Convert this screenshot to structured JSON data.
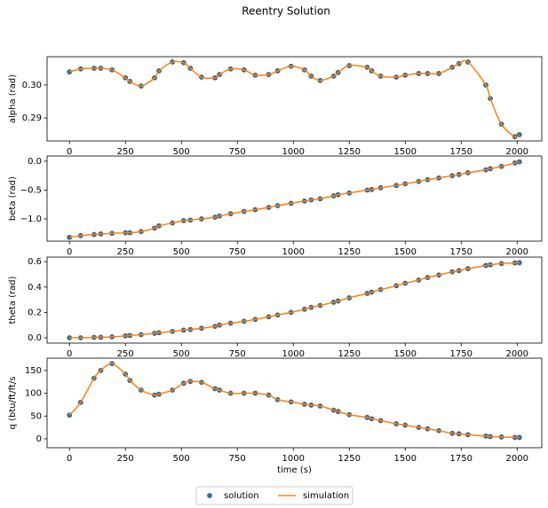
{
  "title": "Reentry Solution",
  "chart_data": [
    {
      "type": "line",
      "ylabel": "alpha (rad)",
      "x": [
        0,
        50,
        110,
        140,
        190,
        250,
        270,
        320,
        380,
        400,
        460,
        510,
        540,
        590,
        650,
        670,
        720,
        780,
        830,
        890,
        930,
        990,
        1050,
        1080,
        1120,
        1180,
        1200,
        1250,
        1330,
        1350,
        1390,
        1460,
        1500,
        1560,
        1600,
        1650,
        1710,
        1740,
        1780,
        1860,
        1880,
        1930,
        1990,
        2010
      ],
      "series": [
        {
          "name": "solution",
          "type": "scatter",
          "color": "#1f77b4",
          "values": [
            0.304,
            0.3049,
            0.3051,
            0.3051,
            0.3046,
            0.3022,
            0.3011,
            0.2997,
            0.3022,
            0.3043,
            0.307,
            0.3068,
            0.3051,
            0.3024,
            0.3022,
            0.3032,
            0.3049,
            0.3046,
            0.303,
            0.3032,
            0.3043,
            0.3057,
            0.3046,
            0.3027,
            0.3014,
            0.3027,
            0.3038,
            0.3059,
            0.3054,
            0.3043,
            0.3027,
            0.3024,
            0.303,
            0.3035,
            0.3035,
            0.3035,
            0.3054,
            0.3065,
            0.307,
            0.3,
            0.2959,
            0.2881,
            0.2843,
            0.2849
          ]
        },
        {
          "name": "simulation",
          "type": "line",
          "color": "#ff7f0e",
          "values": [
            0.304,
            0.3049,
            0.3051,
            0.3051,
            0.3046,
            0.3022,
            0.3011,
            0.2997,
            0.3022,
            0.3043,
            0.307,
            0.3068,
            0.3051,
            0.3024,
            0.3022,
            0.3032,
            0.3049,
            0.3046,
            0.303,
            0.3032,
            0.3043,
            0.3057,
            0.3046,
            0.3027,
            0.3014,
            0.3027,
            0.3038,
            0.3059,
            0.3054,
            0.3043,
            0.3027,
            0.3024,
            0.303,
            0.3035,
            0.3035,
            0.3035,
            0.3054,
            0.3065,
            0.307,
            0.3,
            0.2959,
            0.2881,
            0.2843,
            0.2849
          ]
        }
      ],
      "xlim": [
        -100,
        2110
      ],
      "xticks": [
        0,
        250,
        500,
        750,
        1000,
        1250,
        1500,
        1750,
        2000
      ],
      "ylim": [
        0.283,
        0.3086
      ],
      "yticks": [
        0.29,
        {
          "value": 0.3,
          "label": "0.30"
        }
      ]
    },
    {
      "type": "line",
      "ylabel": "beta (rad)",
      "x": [
        0,
        50,
        110,
        140,
        190,
        250,
        270,
        320,
        380,
        400,
        460,
        510,
        540,
        590,
        650,
        670,
        720,
        780,
        830,
        890,
        930,
        990,
        1050,
        1080,
        1120,
        1180,
        1200,
        1250,
        1330,
        1350,
        1390,
        1460,
        1500,
        1560,
        1600,
        1650,
        1710,
        1740,
        1780,
        1860,
        1880,
        1930,
        1990,
        2010
      ],
      "series": [
        {
          "name": "solution",
          "type": "scatter",
          "color": "#1f77b4",
          "values": [
            -1.32,
            -1.29,
            -1.27,
            -1.26,
            -1.25,
            -1.24,
            -1.24,
            -1.22,
            -1.16,
            -1.12,
            -1.07,
            -1.03,
            -1.02,
            -1.0,
            -0.97,
            -0.95,
            -0.91,
            -0.87,
            -0.84,
            -0.8,
            -0.77,
            -0.73,
            -0.69,
            -0.67,
            -0.65,
            -0.6,
            -0.58,
            -0.55,
            -0.5,
            -0.49,
            -0.46,
            -0.42,
            -0.39,
            -0.35,
            -0.32,
            -0.29,
            -0.25,
            -0.23,
            -0.2,
            -0.15,
            -0.13,
            -0.09,
            -0.03,
            -0.01
          ]
        },
        {
          "name": "simulation",
          "type": "line",
          "color": "#ff7f0e",
          "values": [
            -1.32,
            -1.29,
            -1.27,
            -1.26,
            -1.25,
            -1.24,
            -1.24,
            -1.22,
            -1.16,
            -1.12,
            -1.07,
            -1.03,
            -1.02,
            -1.0,
            -0.97,
            -0.95,
            -0.91,
            -0.87,
            -0.84,
            -0.8,
            -0.77,
            -0.73,
            -0.69,
            -0.67,
            -0.65,
            -0.6,
            -0.58,
            -0.55,
            -0.5,
            -0.49,
            -0.46,
            -0.42,
            -0.39,
            -0.35,
            -0.32,
            -0.29,
            -0.25,
            -0.23,
            -0.2,
            -0.15,
            -0.13,
            -0.09,
            -0.03,
            -0.01
          ]
        }
      ],
      "xlim": [
        -100,
        2110
      ],
      "xticks": [
        0,
        250,
        500,
        750,
        1000,
        1250,
        1500,
        1750,
        2000
      ],
      "ylim": [
        -1.385,
        0.09
      ],
      "yticks": [
        {
          "value": -1,
          "label": "−1.0"
        },
        {
          "value": -0.5,
          "label": "−0.5"
        },
        {
          "value": 0,
          "label": "0.0"
        }
      ]
    },
    {
      "type": "line",
      "ylabel": "theta (rad)",
      "x": [
        0,
        50,
        110,
        140,
        190,
        250,
        270,
        320,
        380,
        400,
        460,
        510,
        540,
        590,
        650,
        670,
        720,
        780,
        830,
        890,
        930,
        990,
        1050,
        1080,
        1120,
        1180,
        1200,
        1250,
        1330,
        1350,
        1390,
        1460,
        1500,
        1560,
        1600,
        1650,
        1710,
        1740,
        1780,
        1860,
        1880,
        1930,
        1990,
        2010
      ],
      "series": [
        {
          "name": "solution",
          "type": "scatter",
          "color": "#1f77b4",
          "values": [
            0,
            0,
            0.003,
            0.004,
            0.007,
            0.015,
            0.018,
            0.025,
            0.035,
            0.04,
            0.05,
            0.06,
            0.065,
            0.075,
            0.09,
            0.1,
            0.115,
            0.13,
            0.145,
            0.165,
            0.18,
            0.2,
            0.225,
            0.24,
            0.255,
            0.28,
            0.29,
            0.315,
            0.35,
            0.36,
            0.38,
            0.41,
            0.43,
            0.455,
            0.475,
            0.495,
            0.52,
            0.53,
            0.545,
            0.57,
            0.575,
            0.585,
            0.59,
            0.592
          ]
        },
        {
          "name": "simulation",
          "type": "line",
          "color": "#ff7f0e",
          "values": [
            0,
            0,
            0.003,
            0.004,
            0.007,
            0.015,
            0.018,
            0.025,
            0.035,
            0.04,
            0.05,
            0.06,
            0.065,
            0.075,
            0.09,
            0.1,
            0.115,
            0.13,
            0.145,
            0.165,
            0.18,
            0.2,
            0.225,
            0.24,
            0.255,
            0.28,
            0.29,
            0.315,
            0.35,
            0.36,
            0.38,
            0.41,
            0.43,
            0.455,
            0.475,
            0.495,
            0.52,
            0.53,
            0.545,
            0.57,
            0.575,
            0.585,
            0.59,
            0.592
          ]
        }
      ],
      "xlim": [
        -100,
        2110
      ],
      "xticks": [
        0,
        250,
        500,
        750,
        1000,
        1250,
        1500,
        1750,
        2000
      ],
      "ylim": [
        -0.042,
        0.636
      ],
      "yticks": [
        {
          "value": 0,
          "label": "0.0"
        },
        0.2,
        0.4,
        0.6
      ]
    },
    {
      "type": "line",
      "ylabel": "q (btu/ft/ft/s",
      "xlabel": "time (s)",
      "x": [
        0,
        50,
        110,
        140,
        190,
        250,
        270,
        320,
        380,
        400,
        460,
        510,
        540,
        590,
        650,
        670,
        720,
        780,
        830,
        890,
        930,
        990,
        1050,
        1080,
        1120,
        1180,
        1200,
        1250,
        1330,
        1350,
        1390,
        1460,
        1500,
        1560,
        1600,
        1650,
        1710,
        1740,
        1780,
        1860,
        1880,
        1930,
        1990,
        2010
      ],
      "series": [
        {
          "name": "solution",
          "type": "scatter",
          "color": "#1f77b4",
          "values": [
            52,
            80,
            133,
            150,
            165,
            142,
            128,
            107,
            96,
            98,
            107,
            122,
            126,
            124,
            110,
            107,
            100,
            100,
            100,
            96,
            86,
            81,
            76,
            74,
            72,
            63,
            60,
            53,
            47,
            44,
            40,
            33,
            30,
            25,
            22,
            18,
            12,
            11,
            9,
            6,
            5,
            4,
            3,
            3
          ]
        },
        {
          "name": "simulation",
          "type": "line",
          "color": "#ff7f0e",
          "values": [
            52,
            80,
            133,
            150,
            165,
            142,
            128,
            107,
            96,
            98,
            107,
            122,
            126,
            124,
            110,
            107,
            100,
            100,
            100,
            96,
            86,
            81,
            76,
            74,
            72,
            63,
            60,
            53,
            47,
            44,
            40,
            33,
            30,
            25,
            22,
            18,
            12,
            11,
            9,
            6,
            5,
            4,
            3,
            3
          ]
        }
      ],
      "xlim": [
        -100,
        2110
      ],
      "xticks": [
        0,
        250,
        500,
        750,
        1000,
        1250,
        1500,
        1750,
        2000
      ],
      "ylim": [
        -19.5,
        177
      ],
      "yticks": [
        0,
        50,
        100,
        150
      ]
    }
  ]
}
